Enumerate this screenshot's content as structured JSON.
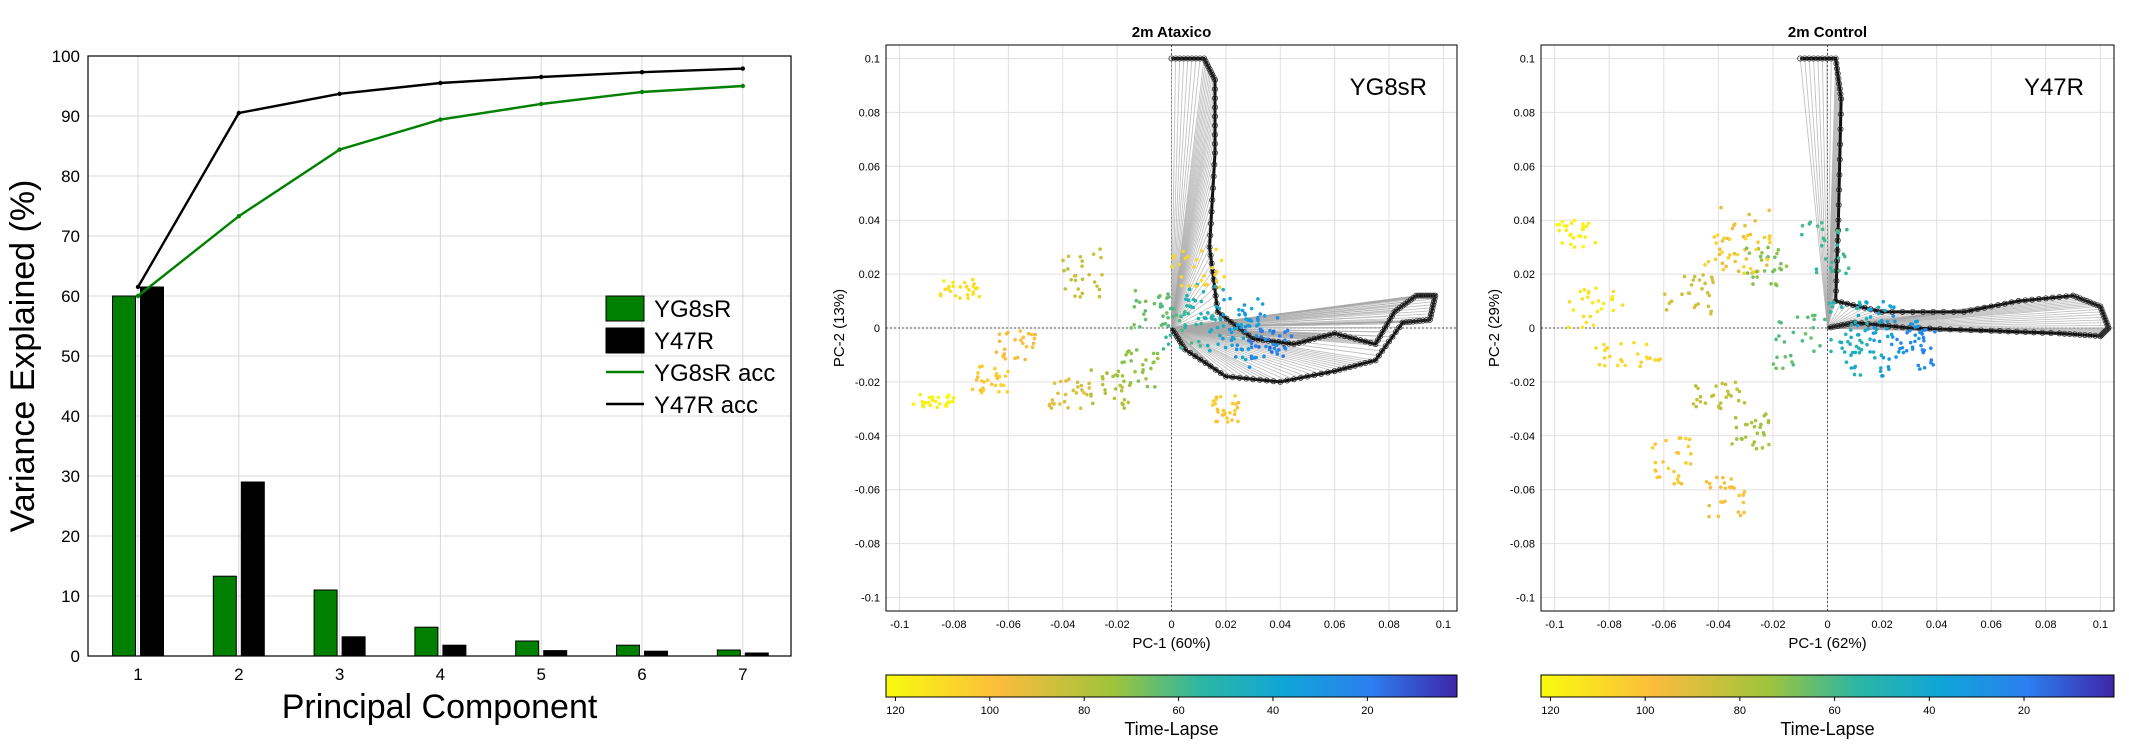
{
  "chart_data": [
    {
      "type": "bar",
      "title": "",
      "xlabel": "Principal Component",
      "ylabel": "Variance Explained (%)",
      "categories": [
        "1",
        "2",
        "3",
        "4",
        "5",
        "6",
        "7"
      ],
      "ylim": [
        0,
        100
      ],
      "yticks": [
        0,
        10,
        20,
        30,
        40,
        50,
        60,
        70,
        80,
        90,
        100
      ],
      "grid": true,
      "legend_position": "center-right",
      "series": [
        {
          "name": "YG8sR",
          "kind": "bar",
          "color": "#008000",
          "values": [
            60,
            13.3,
            11,
            4.8,
            2.5,
            1.8,
            1.0
          ]
        },
        {
          "name": "Y47R",
          "kind": "bar",
          "color": "#000000",
          "values": [
            61.5,
            29,
            3.2,
            1.8,
            0.9,
            0.8,
            0.5
          ]
        },
        {
          "name": "YG8sR acc",
          "kind": "line",
          "color": "#008000",
          "values": [
            60,
            73.3,
            84.4,
            89.4,
            92.0,
            94.0,
            95.0
          ]
        },
        {
          "name": "Y47R acc",
          "kind": "line",
          "color": "#000000",
          "values": [
            61.5,
            90.5,
            93.7,
            95.5,
            96.5,
            97.3,
            97.9
          ]
        }
      ]
    },
    {
      "type": "scatter",
      "title": "2m Ataxico",
      "annotation": "YG8sR",
      "xlabel": "PC-1 (60%)",
      "ylabel": "PC-2 (13%)",
      "xlim": [
        -0.105,
        0.105
      ],
      "ylim": [
        -0.105,
        0.105
      ],
      "xticks": [
        -0.1,
        -0.08,
        -0.06,
        -0.04,
        -0.02,
        0,
        0.02,
        0.04,
        0.06,
        0.08,
        0.1
      ],
      "yticks": [
        -0.1,
        -0.08,
        -0.06,
        -0.04,
        -0.02,
        0,
        0.02,
        0.04,
        0.06,
        0.08,
        0.1
      ],
      "grid": true,
      "colorbar": {
        "label": "Time-Lapse",
        "ticks": [
          120,
          100,
          80,
          60,
          40,
          20
        ],
        "range": [
          122,
          1
        ]
      },
      "loading_path": [
        [
          0.0,
          0.1
        ],
        [
          0.012,
          0.1
        ],
        [
          0.016,
          0.092
        ],
        [
          0.016,
          0.065
        ],
        [
          0.014,
          0.03
        ],
        [
          0.017,
          0.006
        ],
        [
          0.03,
          -0.004
        ],
        [
          0.045,
          -0.006
        ],
        [
          0.06,
          -0.002
        ],
        [
          0.075,
          -0.006
        ],
        [
          0.082,
          0.006
        ],
        [
          0.09,
          0.012
        ],
        [
          0.097,
          0.012
        ],
        [
          0.095,
          0.003
        ],
        [
          0.085,
          0.002
        ],
        [
          0.075,
          -0.012
        ],
        [
          0.06,
          -0.016
        ],
        [
          0.04,
          -0.02
        ],
        [
          0.02,
          -0.018
        ],
        [
          0.005,
          -0.008
        ],
        [
          0.0,
          0.0
        ]
      ],
      "scatter_clusters": [
        {
          "t": 118,
          "x": [
            -0.095,
            -0.08
          ],
          "y": [
            -0.03,
            -0.024
          ]
        },
        {
          "t": 112,
          "x": [
            -0.085,
            -0.07
          ],
          "y": [
            0.01,
            0.018
          ]
        },
        {
          "t": 104,
          "x": [
            -0.075,
            -0.06
          ],
          "y": [
            -0.024,
            -0.014
          ]
        },
        {
          "t": 98,
          "x": [
            -0.065,
            -0.05
          ],
          "y": [
            -0.012,
            0.0
          ]
        },
        {
          "t": 90,
          "x": [
            -0.045,
            -0.03
          ],
          "y": [
            -0.03,
            -0.018
          ]
        },
        {
          "t": 84,
          "x": [
            -0.04,
            -0.025
          ],
          "y": [
            0.01,
            0.03
          ]
        },
        {
          "t": 78,
          "x": [
            -0.03,
            -0.015
          ],
          "y": [
            -0.03,
            -0.015
          ]
        },
        {
          "t": 72,
          "x": [
            -0.02,
            -0.005
          ],
          "y": [
            -0.022,
            -0.008
          ]
        },
        {
          "t": 66,
          "x": [
            -0.015,
            0.0
          ],
          "y": [
            0.0,
            0.015
          ]
        },
        {
          "t": 58,
          "x": [
            -0.005,
            0.012
          ],
          "y": [
            -0.008,
            0.01
          ]
        },
        {
          "t": 50,
          "x": [
            0.005,
            0.02
          ],
          "y": [
            0.0,
            0.018
          ]
        },
        {
          "t": 42,
          "x": [
            0.012,
            0.03
          ],
          "y": [
            -0.012,
            0.008
          ]
        },
        {
          "t": 34,
          "x": [
            0.018,
            0.035
          ],
          "y": [
            -0.008,
            0.012
          ]
        },
        {
          "t": 26,
          "x": [
            0.022,
            0.04
          ],
          "y": [
            -0.016,
            0.006
          ]
        },
        {
          "t": 18,
          "x": [
            0.028,
            0.045
          ],
          "y": [
            -0.012,
            0.0
          ]
        },
        {
          "t": 108,
          "x": [
            0.0,
            0.02
          ],
          "y": [
            0.015,
            0.03
          ]
        },
        {
          "t": 102,
          "x": [
            0.015,
            0.025
          ],
          "y": [
            -0.035,
            -0.025
          ]
        }
      ]
    },
    {
      "type": "scatter",
      "title": "2m Control",
      "annotation": "Y47R",
      "xlabel": "PC-1 (62%)",
      "ylabel": "PC-2 (29%)",
      "xlim": [
        -0.105,
        0.105
      ],
      "ylim": [
        -0.105,
        0.105
      ],
      "xticks": [
        -0.1,
        -0.08,
        -0.06,
        -0.04,
        -0.02,
        0,
        0.02,
        0.04,
        0.06,
        0.08,
        0.1
      ],
      "yticks": [
        -0.1,
        -0.08,
        -0.06,
        -0.04,
        -0.02,
        0,
        0.02,
        0.04,
        0.06,
        0.08,
        0.1
      ],
      "grid": true,
      "colorbar": {
        "label": "Time-Lapse",
        "ticks": [
          120,
          100,
          80,
          60,
          40,
          20
        ],
        "range": [
          122,
          1
        ]
      },
      "loading_path": [
        [
          -0.01,
          0.1
        ],
        [
          0.003,
          0.1
        ],
        [
          0.005,
          0.085
        ],
        [
          0.004,
          0.04
        ],
        [
          0.003,
          0.01
        ],
        [
          0.02,
          0.006
        ],
        [
          0.05,
          0.006
        ],
        [
          0.07,
          0.01
        ],
        [
          0.09,
          0.012
        ],
        [
          0.1,
          0.008
        ],
        [
          0.103,
          0.0
        ],
        [
          0.1,
          -0.003
        ],
        [
          0.085,
          -0.002
        ],
        [
          0.06,
          -0.001
        ],
        [
          0.03,
          0.0
        ],
        [
          0.01,
          0.002
        ],
        [
          0.0,
          0.0
        ]
      ],
      "scatter_clusters": [
        {
          "t": 118,
          "x": [
            -0.1,
            -0.085
          ],
          "y": [
            0.03,
            0.04
          ]
        },
        {
          "t": 114,
          "x": [
            -0.095,
            -0.075
          ],
          "y": [
            0.0,
            0.015
          ]
        },
        {
          "t": 108,
          "x": [
            -0.085,
            -0.06
          ],
          "y": [
            -0.015,
            -0.005
          ]
        },
        {
          "t": 102,
          "x": [
            -0.065,
            -0.05
          ],
          "y": [
            -0.058,
            -0.04
          ]
        },
        {
          "t": 98,
          "x": [
            -0.045,
            -0.03
          ],
          "y": [
            -0.07,
            -0.055
          ]
        },
        {
          "t": 94,
          "x": [
            -0.04,
            -0.02
          ],
          "y": [
            0.02,
            0.045
          ]
        },
        {
          "t": 88,
          "x": [
            -0.06,
            -0.04
          ],
          "y": [
            0.005,
            0.02
          ]
        },
        {
          "t": 82,
          "x": [
            -0.05,
            -0.03
          ],
          "y": [
            -0.03,
            -0.02
          ]
        },
        {
          "t": 76,
          "x": [
            -0.035,
            -0.02
          ],
          "y": [
            -0.045,
            -0.03
          ]
        },
        {
          "t": 70,
          "x": [
            -0.03,
            -0.015
          ],
          "y": [
            0.015,
            0.03
          ]
        },
        {
          "t": 64,
          "x": [
            -0.02,
            0.0
          ],
          "y": [
            -0.015,
            0.005
          ]
        },
        {
          "t": 58,
          "x": [
            -0.01,
            0.008
          ],
          "y": [
            0.02,
            0.04
          ]
        },
        {
          "t": 52,
          "x": [
            0.0,
            0.015
          ],
          "y": [
            -0.01,
            0.01
          ]
        },
        {
          "t": 46,
          "x": [
            0.005,
            0.02
          ],
          "y": [
            -0.02,
            0.0
          ]
        },
        {
          "t": 38,
          "x": [
            0.01,
            0.025
          ],
          "y": [
            -0.005,
            0.01
          ]
        },
        {
          "t": 30,
          "x": [
            0.015,
            0.035
          ],
          "y": [
            -0.02,
            0.005
          ]
        },
        {
          "t": 22,
          "x": [
            0.025,
            0.04
          ],
          "y": [
            -0.015,
            0.0
          ]
        },
        {
          "t": 106,
          "x": [
            -0.045,
            -0.02
          ],
          "y": [
            0.02,
            0.035
          ]
        }
      ]
    }
  ]
}
